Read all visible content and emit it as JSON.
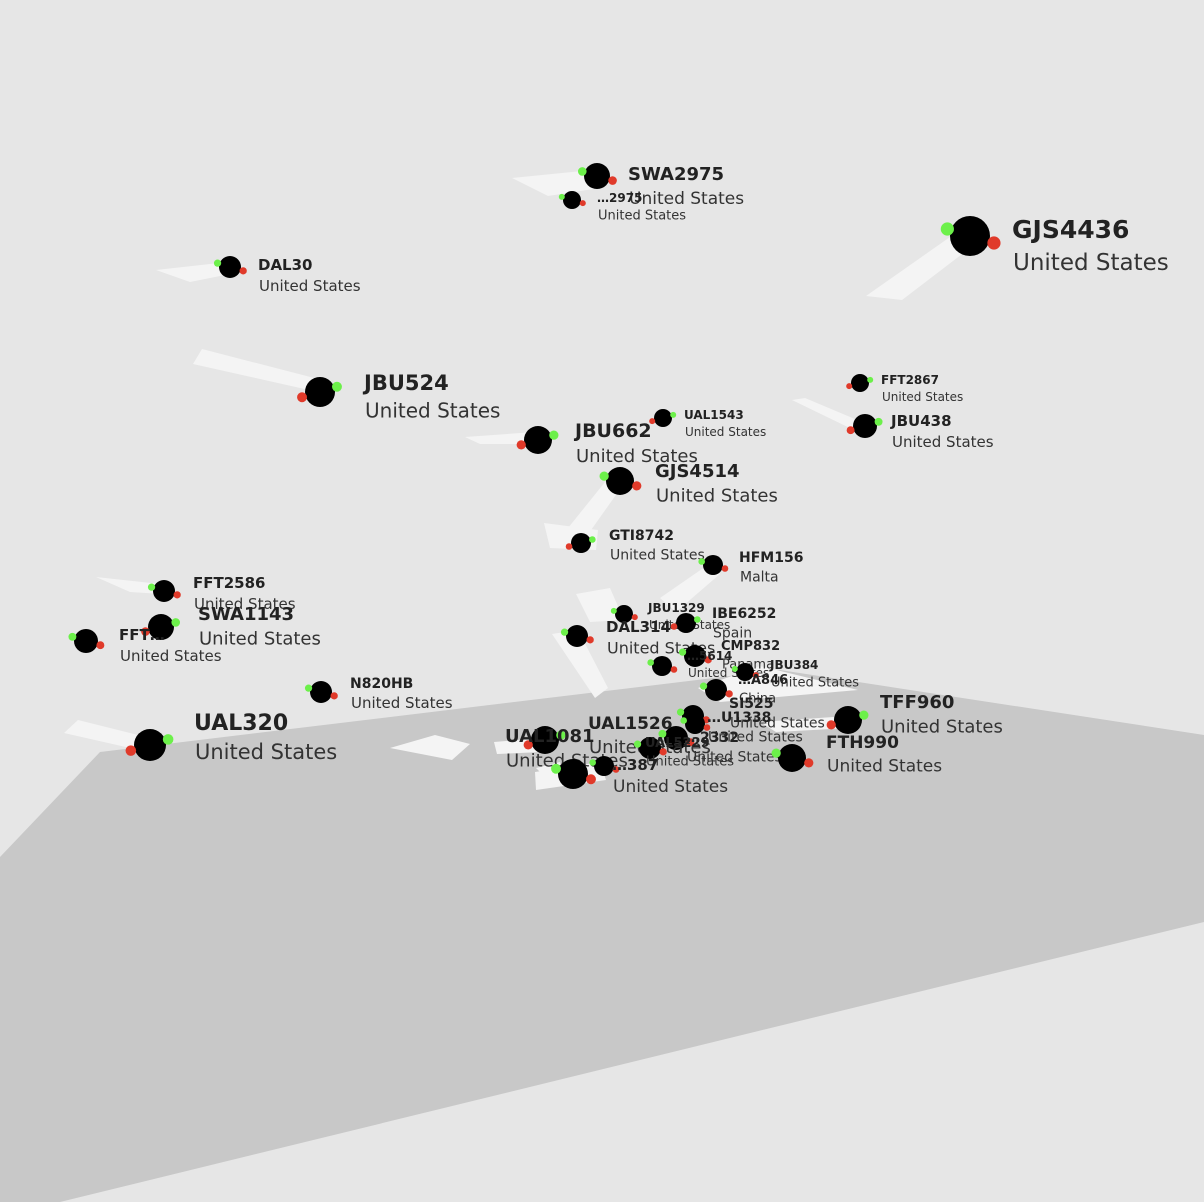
{
  "scene": {
    "sky_color": "#e6e6e6",
    "ground_color": "#c8c8c8",
    "trail_color": "#f4f4f4",
    "aircraft_color": "#000000",
    "nav_light_left": "#e03a2a",
    "nav_light_right": "#6cf04a"
  },
  "flights": [
    {
      "callsign": "SWA2975",
      "country": "United States"
    },
    {
      "callsign": "…2975",
      "country": "United States"
    },
    {
      "callsign": "GJS4436",
      "country": "United States"
    },
    {
      "callsign": "DAL30",
      "country": "United States"
    },
    {
      "callsign": "JBU524",
      "country": "United States"
    },
    {
      "callsign": "FFT2867",
      "country": "United States"
    },
    {
      "callsign": "UAL1543",
      "country": "United States"
    },
    {
      "callsign": "JBU438",
      "country": "United States"
    },
    {
      "callsign": "JBU662",
      "country": "United States"
    },
    {
      "callsign": "GJS4514",
      "country": "United States"
    },
    {
      "callsign": "GTI8742",
      "country": "United States"
    },
    {
      "callsign": "HFM156",
      "country": "Malta"
    },
    {
      "callsign": "FFT2586",
      "country": "United States"
    },
    {
      "callsign": "SWA1143",
      "country": "United States"
    },
    {
      "callsign": "FFT…",
      "country": "United States"
    },
    {
      "callsign": "JBU1329",
      "country": "United States"
    },
    {
      "callsign": "IBE6252",
      "country": "Spain"
    },
    {
      "callsign": "DAL314",
      "country": "United States"
    },
    {
      "callsign": "CMP832",
      "country": "Panama"
    },
    {
      "callsign": "…5614",
      "country": "United States"
    },
    {
      "callsign": "JBU384",
      "country": "United States"
    },
    {
      "callsign": "…A846",
      "country": "China"
    },
    {
      "callsign": "N820HB",
      "country": "United States"
    },
    {
      "callsign": "SI525",
      "country": "United States"
    },
    {
      "callsign": "TFF960",
      "country": "United States"
    },
    {
      "callsign": "UAL320",
      "country": "United States"
    },
    {
      "callsign": "UAL1526",
      "country": "United States"
    },
    {
      "callsign": "UAL1081",
      "country": "United States"
    },
    {
      "callsign": "…U1338",
      "country": "United States"
    },
    {
      "callsign": "UAL5229",
      "country": "United States"
    },
    {
      "callsign": "…2332",
      "country": "United States"
    },
    {
      "callsign": "FTH990",
      "country": "United States"
    },
    {
      "callsign": "…387",
      "country": "United States"
    }
  ]
}
